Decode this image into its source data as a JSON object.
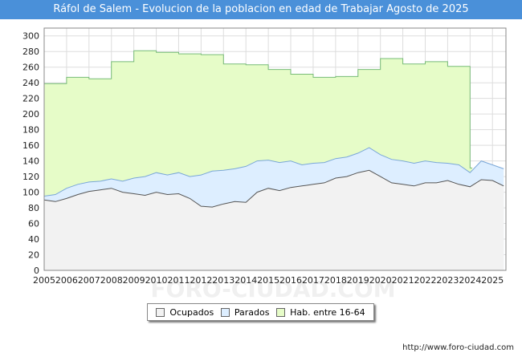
{
  "title": "Ráfol de Salem - Evolucion de la poblacion en edad de Trabajar Agosto de 2025",
  "watermark": "FORO-CIUDAD.COM",
  "source_url": "http://www.foro-ciudad.com",
  "legend": {
    "ocupados": "Ocupados",
    "parados": "Parados",
    "hab": "Hab. entre 16-64"
  },
  "colors": {
    "header": "#4a90d9",
    "ocupados_fill": "#f2f2f2",
    "ocupados_line": "#555555",
    "parados_fill": "#ddeeff",
    "parados_line": "#7aa7d8",
    "hab_fill": "#e6fcc8",
    "hab_line": "#77bb77"
  },
  "chart_data": {
    "type": "area",
    "xlim": [
      2005,
      2025.6
    ],
    "ylim": [
      0,
      310
    ],
    "yticks": [
      0,
      20,
      40,
      60,
      80,
      100,
      120,
      140,
      160,
      180,
      200,
      220,
      240,
      260,
      280,
      300
    ],
    "xticks": [
      2005,
      2006,
      2007,
      2008,
      2009,
      2010,
      2011,
      2012,
      2013,
      2014,
      2015,
      2016,
      2017,
      2018,
      2019,
      2020,
      2021,
      2022,
      2023,
      2024,
      2025
    ],
    "grid": true,
    "legend_position": "bottom-center",
    "series": [
      {
        "name": "Hab. entre 16-64",
        "x": [
          2005,
          2006,
          2007,
          2008,
          2009,
          2010,
          2011,
          2012,
          2013,
          2014,
          2015,
          2016,
          2017,
          2018,
          2019,
          2020,
          2021,
          2022,
          2023,
          2024
        ],
        "values": [
          239,
          247,
          245,
          267,
          281,
          279,
          277,
          276,
          264,
          263,
          257,
          251,
          247,
          248,
          257,
          271,
          264,
          267,
          261,
          131
        ]
      },
      {
        "name": "Parados",
        "x": [
          2005,
          2005.5,
          2006,
          2006.5,
          2007,
          2007.5,
          2008,
          2008.5,
          2009,
          2009.5,
          2010,
          2010.5,
          2011,
          2011.5,
          2012,
          2012.5,
          2013,
          2013.5,
          2014,
          2014.5,
          2015,
          2015.5,
          2016,
          2016.5,
          2017,
          2017.5,
          2018,
          2018.5,
          2019,
          2019.5,
          2020,
          2020.5,
          2021,
          2021.5,
          2022,
          2022.5,
          2023,
          2023.5,
          2024,
          2024.5,
          2025,
          2025.5
        ],
        "values": [
          95,
          97,
          105,
          110,
          113,
          114,
          117,
          114,
          118,
          120,
          125,
          122,
          125,
          120,
          122,
          127,
          128,
          130,
          133,
          140,
          141,
          138,
          140,
          135,
          137,
          138,
          143,
          145,
          150,
          157,
          148,
          142,
          140,
          137,
          140,
          138,
          137,
          135,
          125,
          140,
          135,
          130
        ]
      },
      {
        "name": "Ocupados",
        "x": [
          2005,
          2005.5,
          2006,
          2006.5,
          2007,
          2007.5,
          2008,
          2008.5,
          2009,
          2009.5,
          2010,
          2010.5,
          2011,
          2011.5,
          2012,
          2012.5,
          2013,
          2013.5,
          2014,
          2014.5,
          2015,
          2015.5,
          2016,
          2016.5,
          2017,
          2017.5,
          2018,
          2018.5,
          2019,
          2019.5,
          2020,
          2020.5,
          2021,
          2021.5,
          2022,
          2022.5,
          2023,
          2023.5,
          2024,
          2024.5,
          2025,
          2025.5
        ],
        "values": [
          90,
          88,
          92,
          97,
          101,
          103,
          105,
          100,
          98,
          96,
          100,
          97,
          98,
          92,
          82,
          81,
          85,
          88,
          87,
          100,
          105,
          102,
          106,
          108,
          110,
          112,
          118,
          120,
          125,
          128,
          120,
          112,
          110,
          108,
          112,
          112,
          115,
          110,
          107,
          116,
          115,
          108
        ]
      }
    ]
  }
}
